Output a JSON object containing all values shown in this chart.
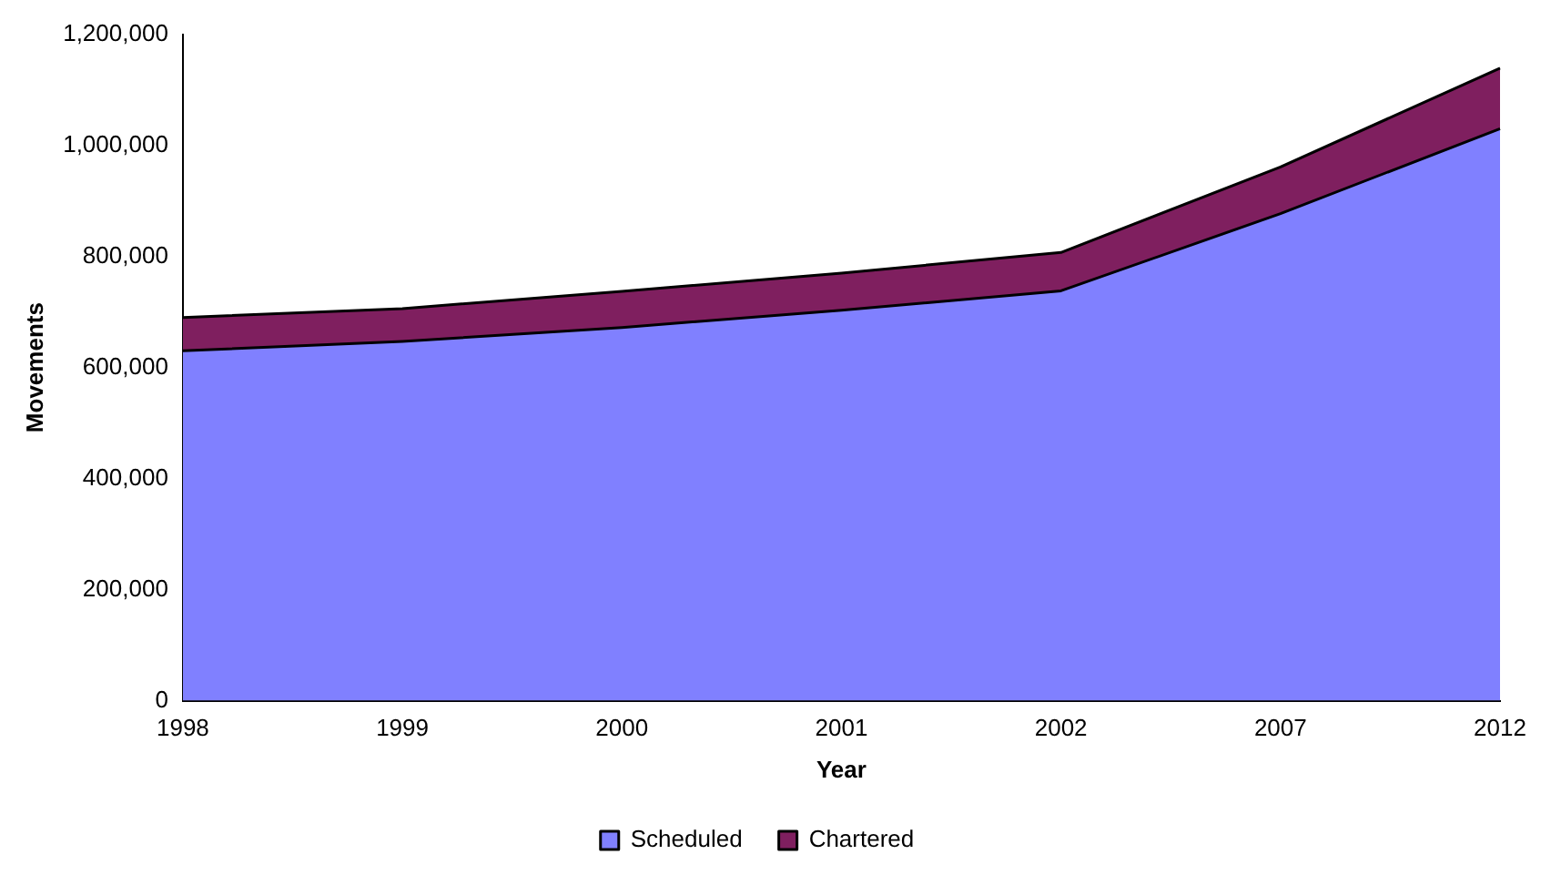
{
  "chart_data": {
    "type": "area",
    "stacked": true,
    "xlabel": "Year",
    "ylabel": "Movements",
    "categories": [
      "1998",
      "1999",
      "2000",
      "2001",
      "2002",
      "2007",
      "2012"
    ],
    "series": [
      {
        "name": "Scheduled",
        "color": "#8080ff",
        "values": [
          630000,
          647000,
          672000,
          703000,
          738000,
          877000,
          1030000
        ]
      },
      {
        "name": "Chartered",
        "color": "#7f1f5f",
        "values": [
          60000,
          59000,
          65000,
          67000,
          69000,
          84000,
          109000
        ]
      }
    ],
    "ylim": [
      0,
      1200000
    ],
    "yticks": [
      {
        "value": 0,
        "label": "0"
      },
      {
        "value": 200000,
        "label": "200,000"
      },
      {
        "value": 400000,
        "label": "400,000"
      },
      {
        "value": 600000,
        "label": "600,000"
      },
      {
        "value": 800000,
        "label": "800,000"
      },
      {
        "value": 1000000,
        "label": "1,000,000"
      },
      {
        "value": 1200000,
        "label": "1,200,000"
      }
    ],
    "grid": false,
    "legend": "bottom"
  }
}
